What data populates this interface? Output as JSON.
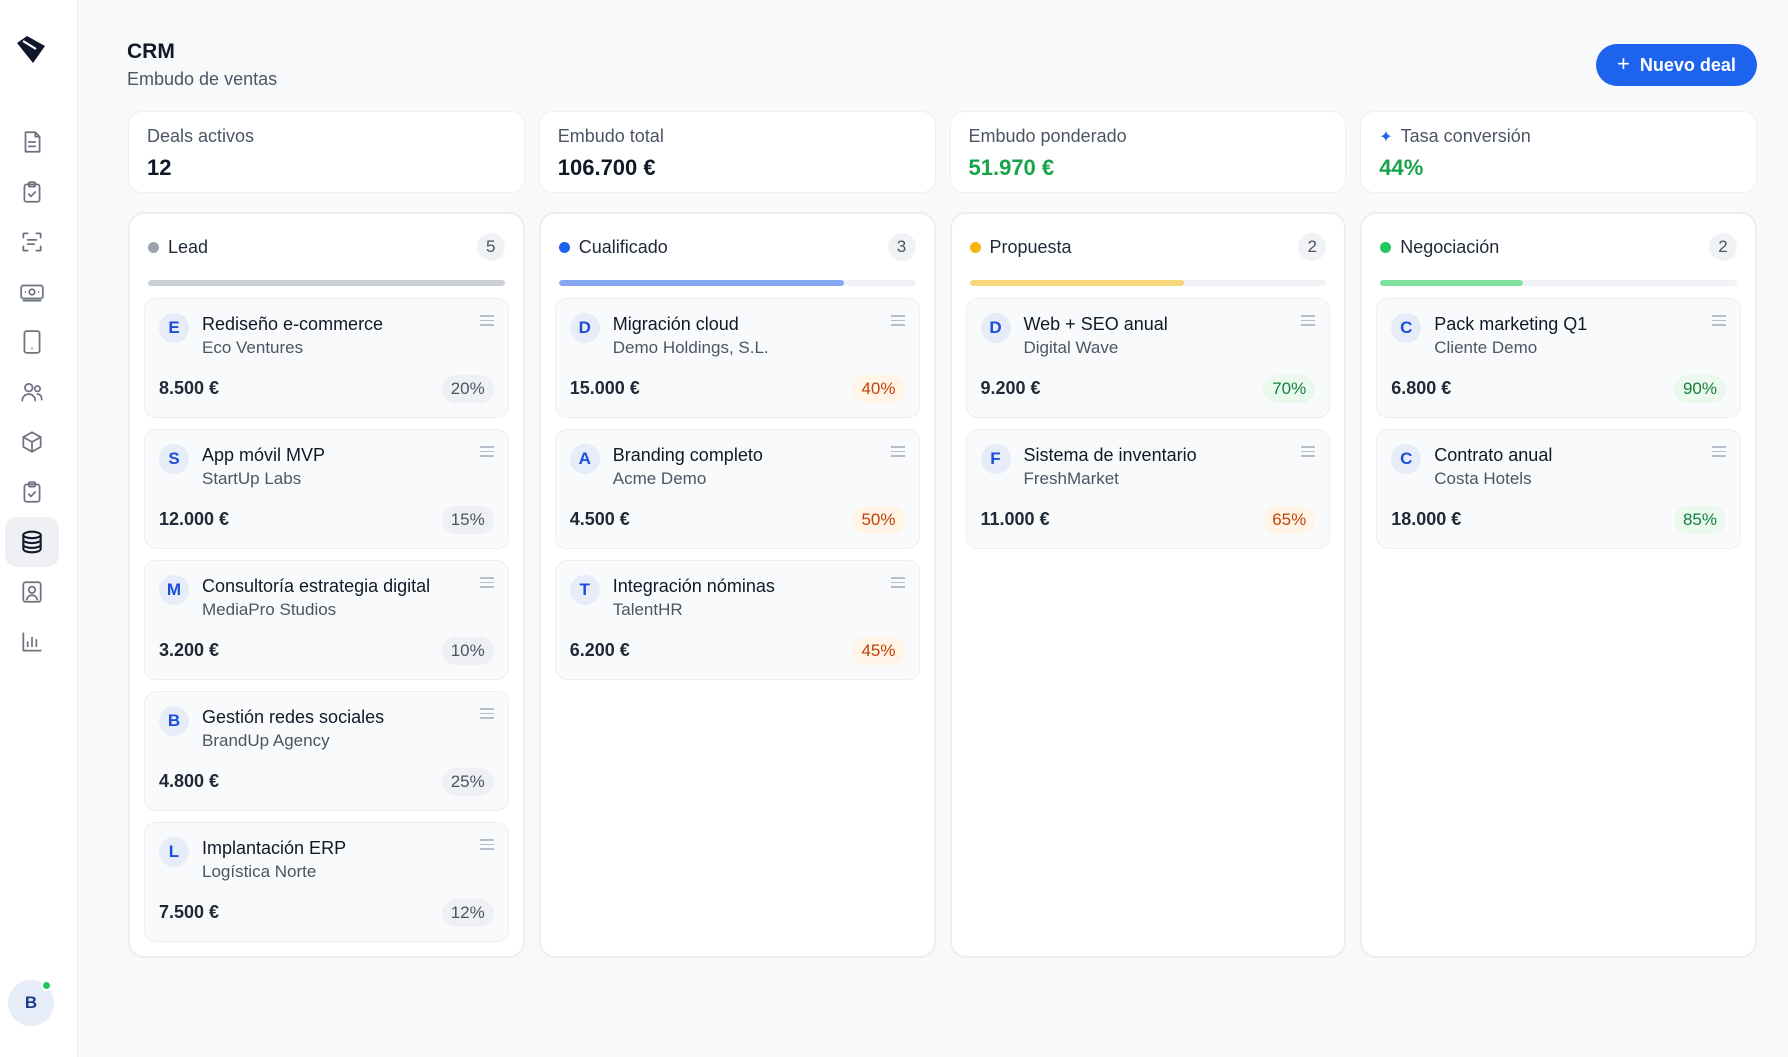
{
  "header": {
    "title": "CRM",
    "subtitle": "Embudo de ventas",
    "new_deal_label": "Nuevo deal",
    "new_deal_icon": "plus-icon"
  },
  "sidebar": {
    "items": [
      {
        "icon": "document-icon",
        "active": false
      },
      {
        "icon": "clipboard-check-icon",
        "active": false
      },
      {
        "icon": "scan-text-icon",
        "active": false
      },
      {
        "icon": "banknote-icon",
        "active": false
      },
      {
        "icon": "tablet-icon",
        "active": false
      },
      {
        "icon": "users-icon",
        "active": false
      },
      {
        "icon": "package-icon",
        "active": false
      },
      {
        "icon": "clipboard-check-2-icon",
        "active": false
      },
      {
        "icon": "database-icon",
        "active": true
      },
      {
        "icon": "contact-icon",
        "active": false
      },
      {
        "icon": "bar-chart-icon",
        "active": false
      }
    ],
    "user_initial": "B",
    "user_status_color": "#22c55e"
  },
  "stats": [
    {
      "label": "Deals activos",
      "value": "12"
    },
    {
      "label": "Embudo total",
      "value": "106.700 €"
    },
    {
      "label": "Embudo ponderado",
      "value": "51.970 €",
      "value_color": "#16a34a"
    },
    {
      "label": "Tasa conversión",
      "value": "44%",
      "value_color": "#16a34a",
      "icon": "sparkle-icon"
    }
  ],
  "columns": [
    {
      "name": "Lead",
      "count": "5",
      "dot_color": "#9ca3af",
      "bar_color": "#cbd0d7",
      "progress": 1.0,
      "deals": [
        {
          "initial": "E",
          "title": "Rediseño e-commerce",
          "company": "Eco Ventures",
          "amount": "8.500 €",
          "probability": "20%",
          "tone": "gray"
        },
        {
          "initial": "S",
          "title": "App móvil MVP",
          "company": "StartUp Labs",
          "amount": "12.000 €",
          "probability": "15%",
          "tone": "gray"
        },
        {
          "initial": "M",
          "title": "Consultoría estrategia digital",
          "company": "MediaPro Studios",
          "amount": "3.200 €",
          "probability": "10%",
          "tone": "gray"
        },
        {
          "initial": "B",
          "title": "Gestión redes sociales",
          "company": "BrandUp Agency",
          "amount": "4.800 €",
          "probability": "25%",
          "tone": "gray"
        },
        {
          "initial": "L",
          "title": "Implantación ERP",
          "company": "Logística Norte",
          "amount": "7.500 €",
          "probability": "12%",
          "tone": "gray"
        }
      ]
    },
    {
      "name": "Cualificado",
      "count": "3",
      "dot_color": "#1d63ed",
      "bar_color": "#86a8f0",
      "progress": 0.8,
      "deals": [
        {
          "initial": "D",
          "title": "Migración cloud",
          "company": "Demo Holdings, S.L.",
          "amount": "15.000 €",
          "probability": "40%",
          "tone": "orange"
        },
        {
          "initial": "A",
          "title": "Branding completo",
          "company": "Acme Demo",
          "amount": "4.500 €",
          "probability": "50%",
          "tone": "orange"
        },
        {
          "initial": "T",
          "title": "Integración nóminas",
          "company": "TalentHR",
          "amount": "6.200 €",
          "probability": "45%",
          "tone": "orange"
        }
      ]
    },
    {
      "name": "Propuesta",
      "count": "2",
      "dot_color": "#f5b50b",
      "bar_color": "#f6d87a",
      "progress": 0.6,
      "deals": [
        {
          "initial": "D",
          "title": "Web + SEO anual",
          "company": "Digital Wave",
          "amount": "9.200 €",
          "probability": "70%",
          "tone": "green"
        },
        {
          "initial": "F",
          "title": "Sistema de inventario",
          "company": "FreshMarket",
          "amount": "11.000 €",
          "probability": "65%",
          "tone": "orange"
        }
      ]
    },
    {
      "name": "Negociación",
      "count": "2",
      "dot_color": "#22c55e",
      "bar_color": "#7fe0a0",
      "progress": 0.4,
      "deals": [
        {
          "initial": "C",
          "title": "Pack marketing Q1",
          "company": "Cliente Demo",
          "amount": "6.800 €",
          "probability": "90%",
          "tone": "green"
        },
        {
          "initial": "C",
          "title": "Contrato anual",
          "company": "Costa Hotels",
          "amount": "18.000 €",
          "probability": "85%",
          "tone": "green"
        }
      ]
    }
  ]
}
